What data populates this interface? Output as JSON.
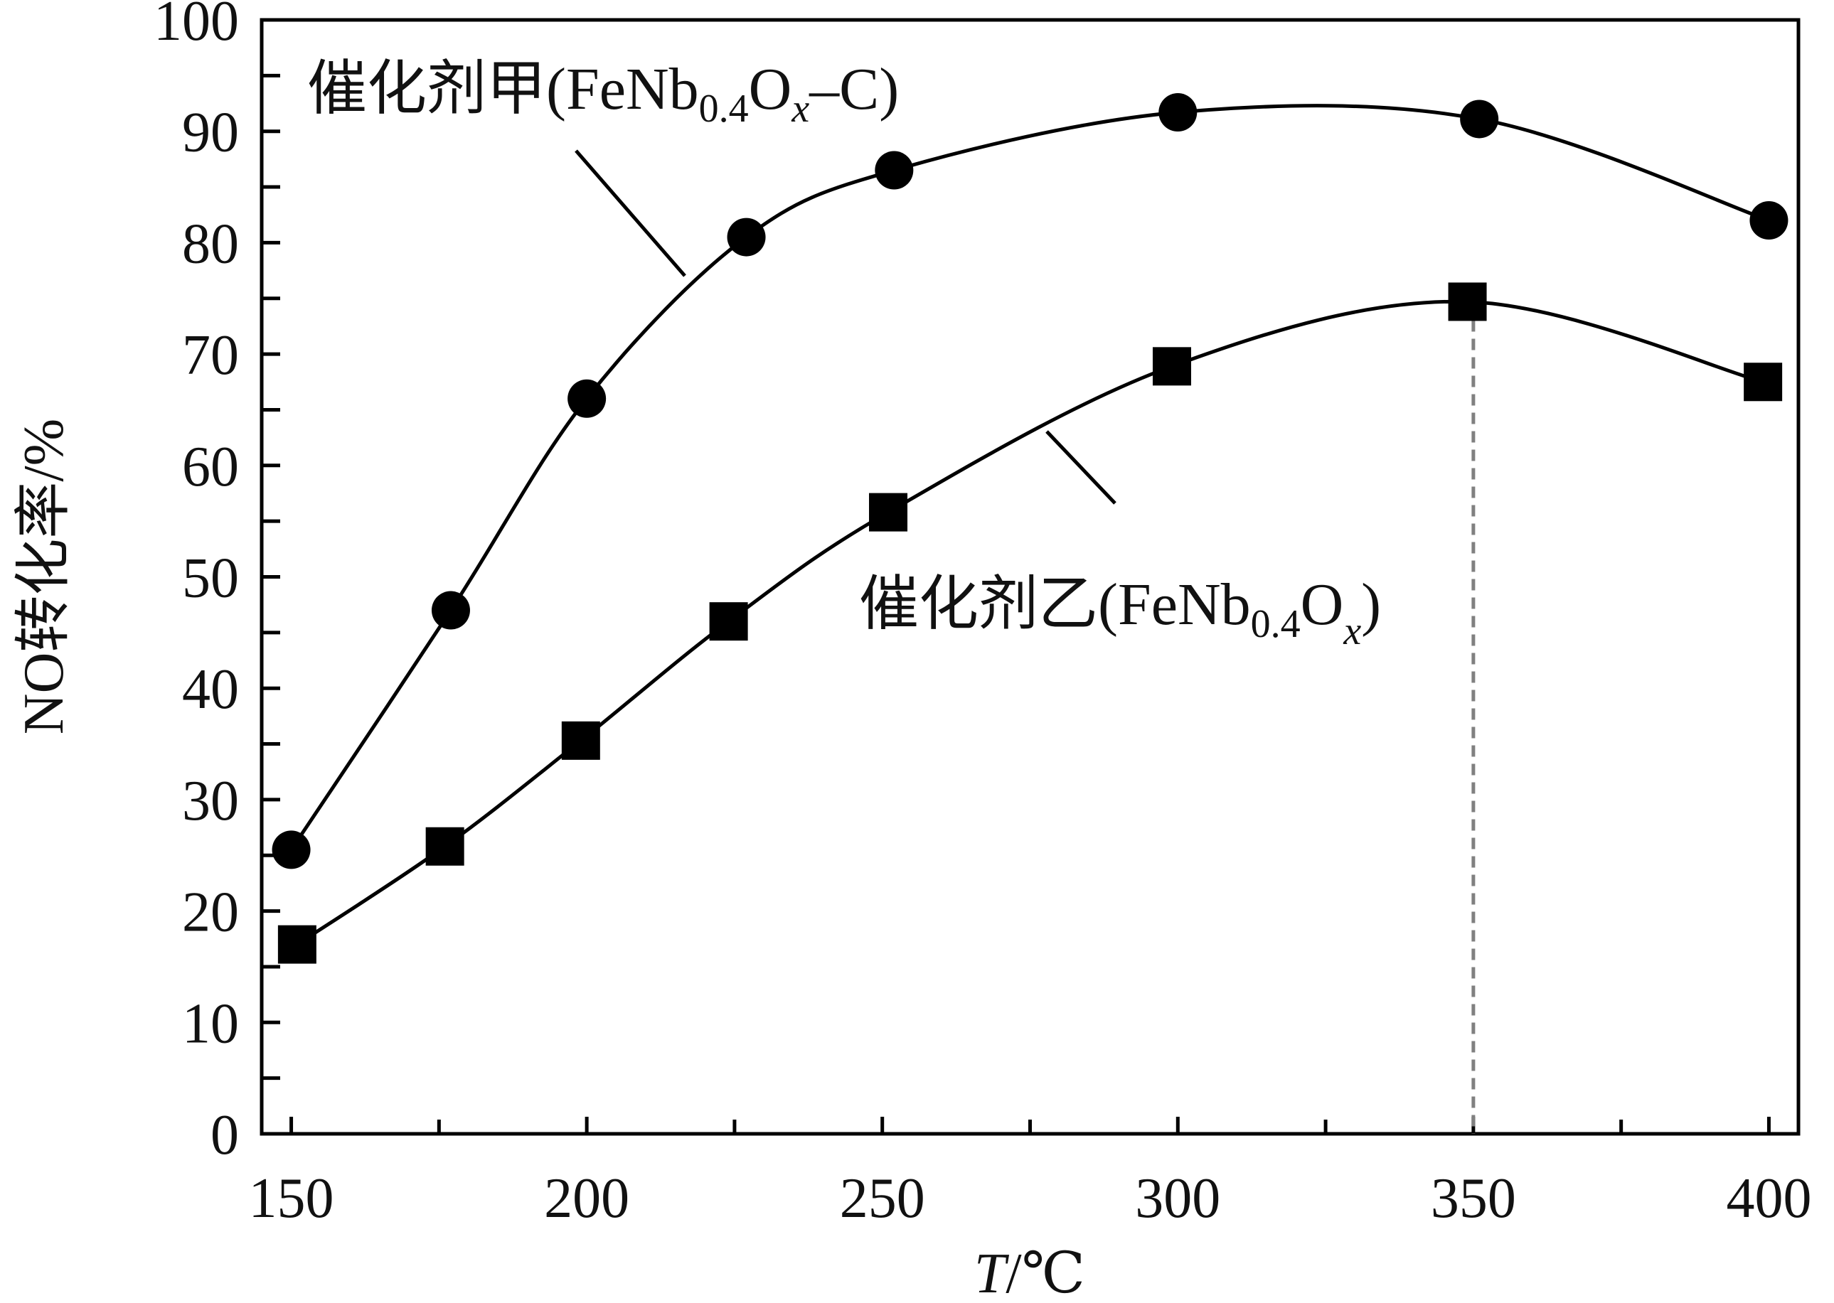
{
  "chart_data": {
    "type": "line",
    "xlabel": {
      "var": "T",
      "unit": "/℃"
    },
    "ylabel": "NO转化率/%",
    "xlim": [
      145,
      405
    ],
    "ylim": [
      0,
      100
    ],
    "x_ticks": [
      150,
      200,
      250,
      300,
      350,
      400
    ],
    "x_minor_ticks": [
      175,
      225,
      275,
      325,
      375
    ],
    "y_ticks": [
      0,
      10,
      20,
      30,
      40,
      50,
      60,
      70,
      80,
      90,
      100
    ],
    "y_minor_ticks": [
      5,
      15,
      25,
      35,
      45,
      55,
      65,
      75,
      85,
      95
    ],
    "grid": false,
    "series": [
      {
        "name": "催化剂甲(FeNb0.4Ox–C)",
        "label": {
          "prefix": "催化剂甲(FeNb",
          "sub": "0.4",
          "mid": "O",
          "italic_sub": "x",
          "suffix": "–C)"
        },
        "marker": "circle",
        "color": "#000000",
        "x": [
          150,
          177,
          200,
          227,
          252,
          300,
          351,
          400
        ],
        "y": [
          25.5,
          47,
          66,
          80.5,
          86.5,
          91.7,
          91.1,
          82
        ]
      },
      {
        "name": "催化剂乙(FeNb0.4Ox)",
        "label": {
          "prefix": "催化剂乙(FeNb",
          "sub": "0.4",
          "mid": "O",
          "italic_sub": "x",
          "suffix": ")"
        },
        "marker": "square",
        "color": "#000000",
        "x": [
          151,
          176,
          199,
          224,
          251,
          299,
          349,
          399
        ],
        "y": [
          17,
          25.8,
          35.3,
          46,
          55.8,
          68.9,
          74.7,
          67.5
        ]
      }
    ],
    "reference_line": {
      "x": 350,
      "y": 74.7,
      "style": "dashed",
      "color": "#808080"
    }
  }
}
